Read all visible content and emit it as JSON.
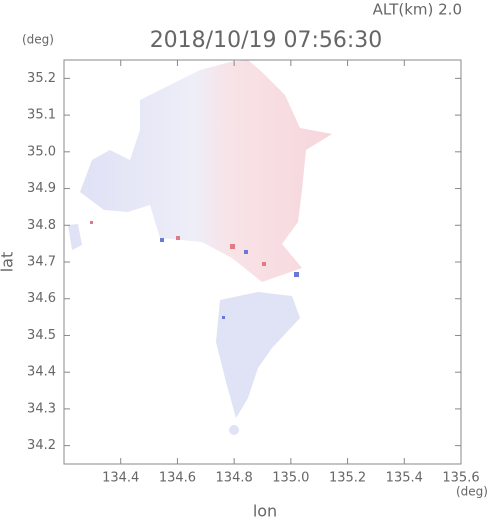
{
  "chart_data": {
    "type": "map",
    "title": "2018/10/19 07:56:30",
    "subtitle": "ALT(km) 2.0",
    "x_label": "lon",
    "y_label": "lat",
    "x_unit": "(deg)",
    "y_unit": "(deg)",
    "xlim": [
      134.2,
      135.6
    ],
    "ylim": [
      34.15,
      35.25
    ],
    "xticks": [
      134.4,
      134.6,
      134.8,
      {
        "value": 135,
        "label": "135.0"
      },
      135.2,
      135.4,
      135.6
    ],
    "yticks": [
      34.2,
      34.3,
      34.4,
      34.5,
      34.6,
      34.7,
      34.8,
      34.9,
      {
        "value": 35,
        "label": "35.0"
      },
      35.1,
      35.2
    ]
  }
}
